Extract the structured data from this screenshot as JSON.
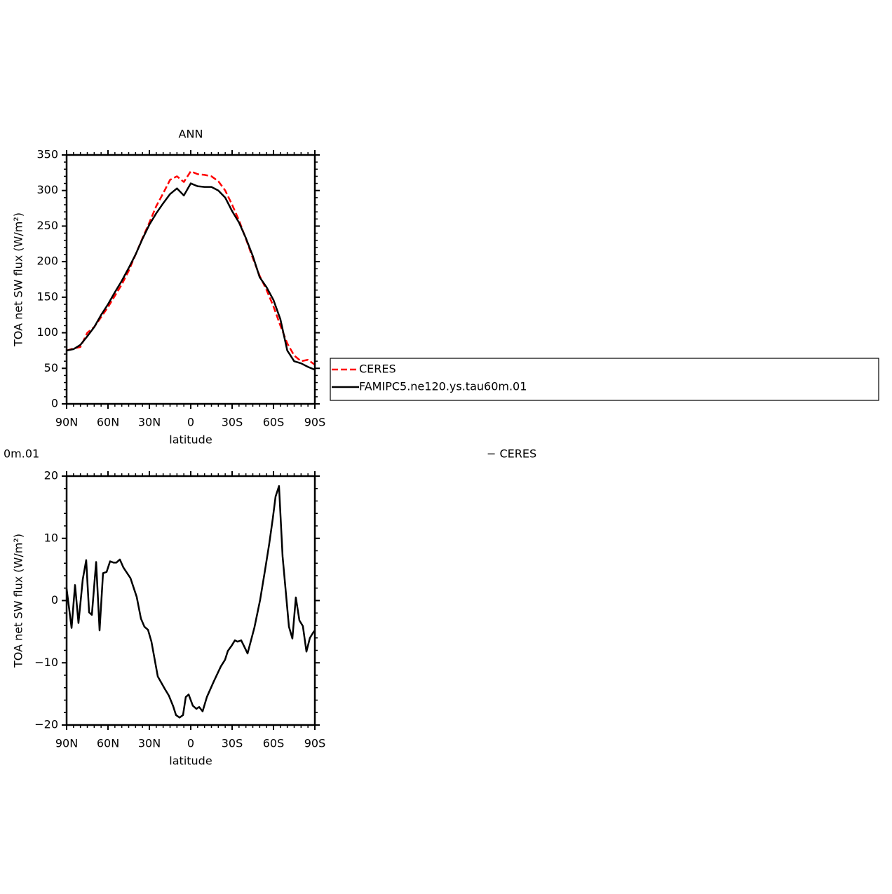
{
  "chart_data": [
    {
      "type": "line",
      "title": "ANN",
      "x_label": "latitude",
      "y_label": "TOA net SW flux (W/m²)",
      "x": [
        90,
        85,
        80,
        75,
        70,
        65,
        60,
        55,
        50,
        45,
        40,
        35,
        30,
        25,
        20,
        15,
        10,
        5,
        0,
        -5,
        -10,
        -15,
        -20,
        -25,
        -30,
        -35,
        -40,
        -45,
        -50,
        -55,
        -60,
        -65,
        -70,
        -75,
        -80,
        -85,
        -90
      ],
      "series": [
        {
          "name": "CERES",
          "color": "#ff0000",
          "line_style": "dashed",
          "values": [
            75,
            78,
            80,
            100,
            108,
            122,
            136,
            152,
            168,
            187,
            210,
            233,
            255,
            278,
            296,
            315,
            320,
            312,
            327,
            323,
            322,
            320,
            313,
            300,
            280,
            258,
            232,
            205,
            180,
            160,
            137,
            110,
            85,
            68,
            60,
            62,
            55
          ]
        },
        {
          "name": "FAMIPC5.ne120.ys.tau60m.01",
          "color": "#000000",
          "line_style": "solid",
          "values": [
            75,
            77,
            83,
            95,
            108,
            125,
            140,
            157,
            173,
            191,
            210,
            232,
            252,
            268,
            282,
            295,
            303,
            293,
            310,
            306,
            305,
            305,
            300,
            290,
            271,
            255,
            233,
            208,
            178,
            164,
            146,
            119,
            75,
            60,
            57,
            52,
            48
          ]
        }
      ],
      "xlim": [
        90,
        -90
      ],
      "xticks": [
        {
          "value": 90,
          "label": "90N"
        },
        {
          "value": 60,
          "label": "60N"
        },
        {
          "value": 30,
          "label": "30N"
        },
        0,
        {
          "value": -30,
          "label": "30S"
        },
        {
          "value": -60,
          "label": "60S"
        },
        {
          "value": -90,
          "label": "90S"
        }
      ],
      "ylim": [
        0,
        350
      ],
      "yticks": [
        0,
        50,
        100,
        150,
        200,
        250,
        300,
        350
      ]
    },
    {
      "type": "line",
      "title_fragments": [
        "0m.01",
        "− CERES"
      ],
      "x_label": "latitude",
      "y_label": "TOA net SW flux (W/m²)",
      "x": [
        90,
        86.4,
        83.9,
        81.4,
        78.3,
        75.8,
        73.7,
        71.7,
        68.6,
        66.1,
        63.6,
        61,
        58.5,
        56,
        53.9,
        51.4,
        48.8,
        43.7,
        39.2,
        36.1,
        33.6,
        31,
        28.5,
        23.9,
        18.8,
        15.8,
        12.7,
        10.7,
        8.1,
        5.6,
        3.6,
        1.5,
        -1.5,
        -4.1,
        -6.1,
        -8.6,
        -11.7,
        -16.7,
        -21.8,
        -24.9,
        -26.9,
        -29.5,
        -32,
        -34,
        -36.6,
        -38.6,
        -41.2,
        -46.2,
        -50.3,
        -53.8,
        -56.9,
        -59.5,
        -61.5,
        -64,
        -66.6,
        -71.2,
        -73.7,
        -76.2,
        -78.8,
        -81.3,
        -83.9,
        -86.4,
        -88.9,
        -90
      ],
      "values": [
        1.9,
        -4.4,
        2.5,
        -3.6,
        3.4,
        6.5,
        -1.9,
        -2.3,
        6.2,
        -4.8,
        4.4,
        4.6,
        6.3,
        6.1,
        6.1,
        6.6,
        5.3,
        3.6,
        0.6,
        -2.9,
        -4.2,
        -4.7,
        -6.6,
        -12.2,
        -14.2,
        -15.3,
        -17.0,
        -18.4,
        -18.8,
        -18.4,
        -15.5,
        -15.1,
        -16.9,
        -17.4,
        -17.1,
        -17.8,
        -15.5,
        -13.0,
        -10.6,
        -9.5,
        -8.1,
        -7.3,
        -6.4,
        -6.6,
        -6.4,
        -7.3,
        -8.5,
        -4.3,
        0.1,
        4.8,
        9.1,
        13.2,
        16.7,
        18.4,
        7.1,
        -4.2,
        -6.1,
        0.5,
        -3.2,
        -4.1,
        -8.2,
        -6.0,
        -5.1,
        -4.8
      ],
      "color": "#000000",
      "xlim": [
        90,
        -90
      ],
      "xticks": [
        {
          "value": 90,
          "label": "90N"
        },
        {
          "value": 60,
          "label": "60N"
        },
        {
          "value": 30,
          "label": "30N"
        },
        0,
        {
          "value": -30,
          "label": "30S"
        },
        {
          "value": -60,
          "label": "60S"
        },
        {
          "value": -90,
          "label": "90S"
        }
      ],
      "ylim": [
        -20,
        20
      ],
      "yticks": [
        {
          "value": -20,
          "label": "−20"
        },
        {
          "value": -10,
          "label": "−10"
        },
        0,
        10,
        20
      ]
    }
  ]
}
